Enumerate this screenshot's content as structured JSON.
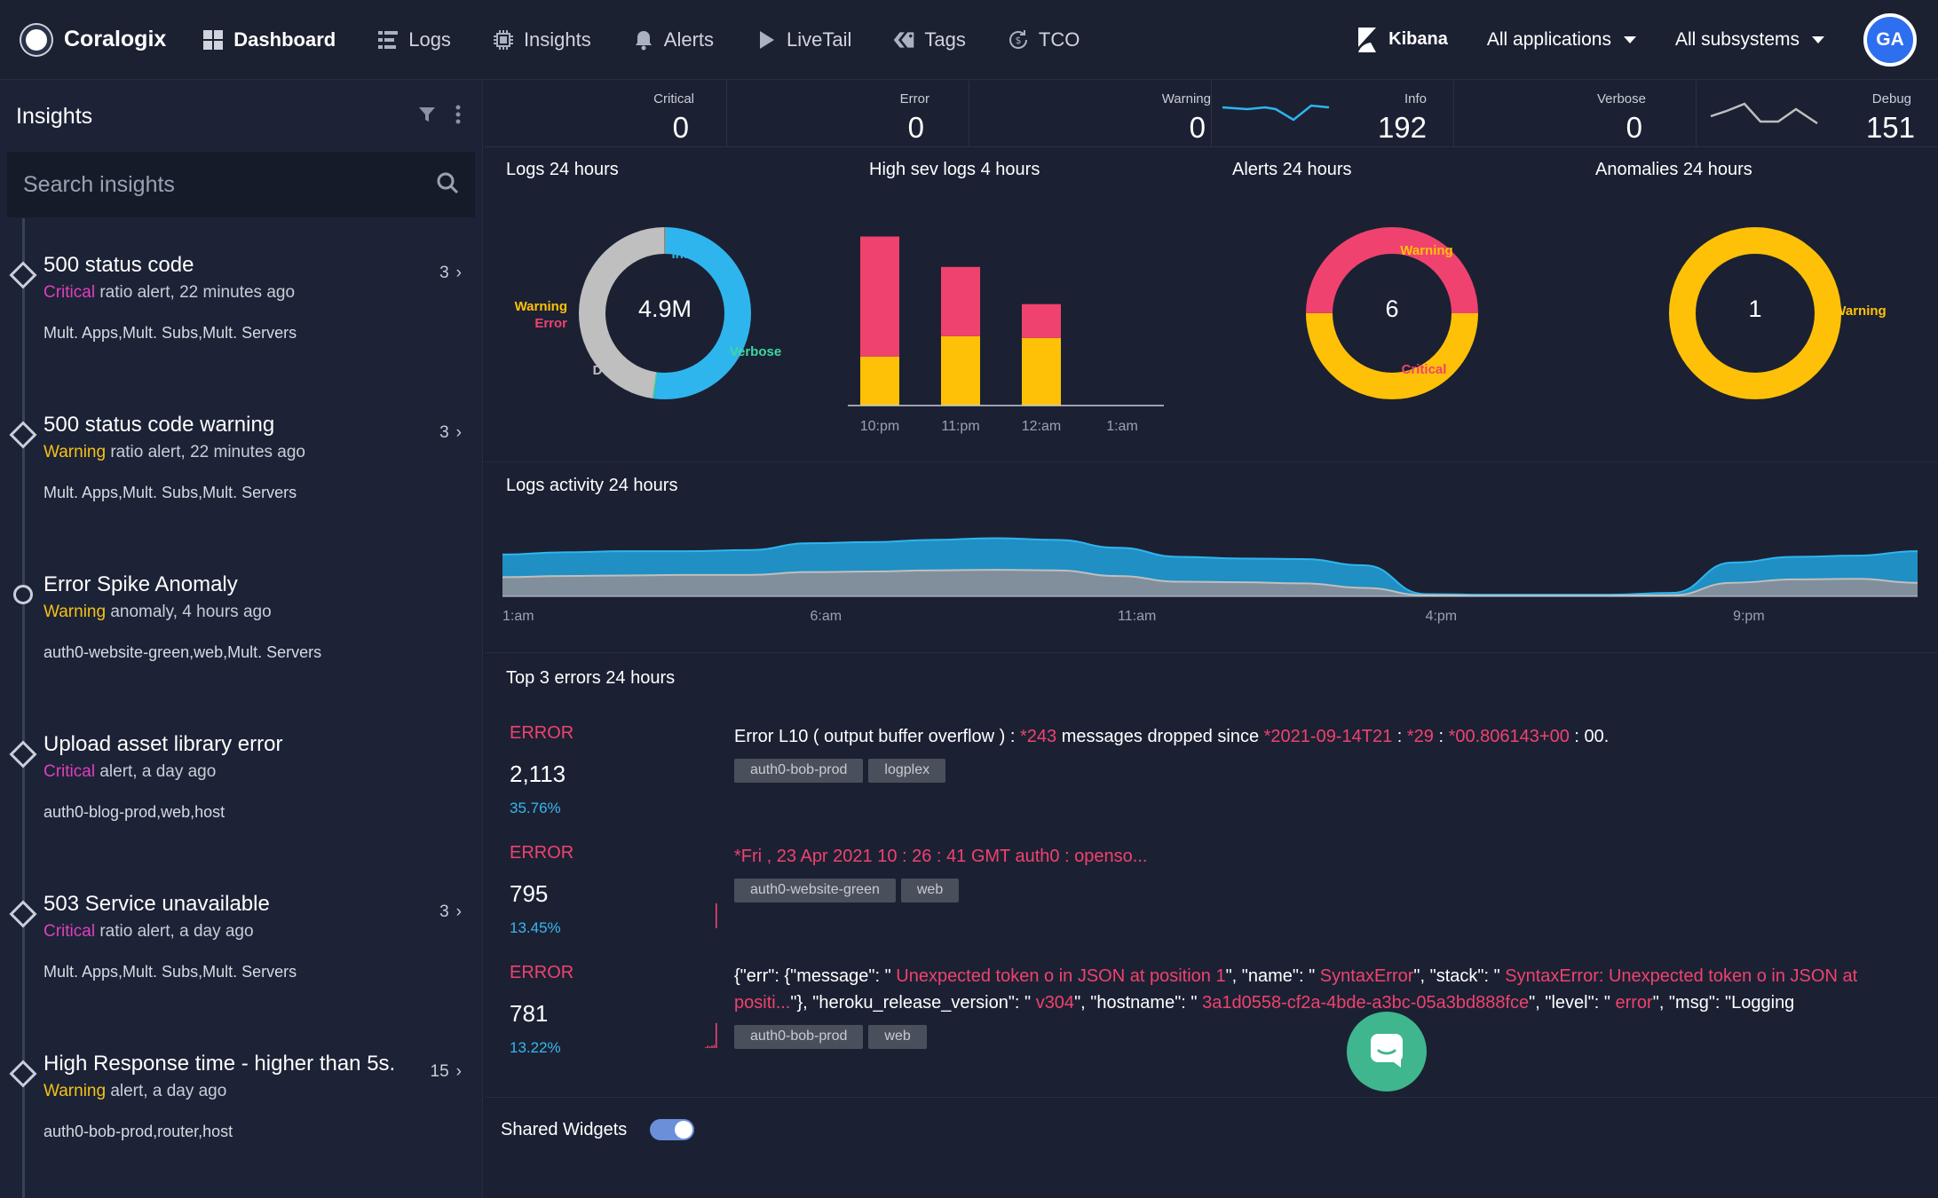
{
  "nav": {
    "brand": "Coralogix",
    "items": [
      {
        "label": "Dashboard",
        "icon": "grid-icon",
        "active": true
      },
      {
        "label": "Logs",
        "icon": "logs-icon",
        "active": false
      },
      {
        "label": "Insights",
        "icon": "chip-icon",
        "active": false
      },
      {
        "label": "Alerts",
        "icon": "bell-icon",
        "active": false
      },
      {
        "label": "LiveTail",
        "icon": "play-icon",
        "active": false
      },
      {
        "label": "Tags",
        "icon": "tags-icon",
        "active": false
      },
      {
        "label": "TCO",
        "icon": "tco-icon",
        "active": false
      }
    ],
    "kibana": "Kibana",
    "applications": "All applications",
    "subsystems": "All subsystems",
    "avatar_initials": "GA"
  },
  "sidebar": {
    "title": "Insights",
    "search_placeholder": "Search insights",
    "insights": [
      {
        "title": "500 status code",
        "severity": "Critical",
        "detail": " ratio alert, 22 minutes ago",
        "meta": "Mult. Apps,Mult. Subs,Mult. Servers",
        "count": "3",
        "marker": "diamond"
      },
      {
        "title": "500 status code warning",
        "severity": "Warning",
        "detail": " ratio alert, 22 minutes ago",
        "meta": "Mult. Apps,Mult. Subs,Mult. Servers",
        "count": "3",
        "marker": "diamond"
      },
      {
        "title": "Error Spike Anomaly",
        "severity": "Warning",
        "detail": " anomaly, 4 hours ago",
        "meta": "auth0-website-green,web,Mult. Servers",
        "count": "",
        "marker": "circle"
      },
      {
        "title": "Upload asset library error",
        "severity": "Critical",
        "detail": " alert, a day ago",
        "meta": "auth0-blog-prod,web,host",
        "count": "",
        "marker": "diamond"
      },
      {
        "title": "503 Service unavailable",
        "severity": "Critical",
        "detail": " ratio alert, a day ago",
        "meta": "Mult. Apps,Mult. Subs,Mult. Servers",
        "count": "3",
        "marker": "diamond"
      },
      {
        "title": "High Response time - higher than 5s.",
        "severity": "Warning",
        "detail": " alert, a day ago",
        "meta": "auth0-bob-prod,router,host",
        "count": "15",
        "marker": "diamond"
      }
    ]
  },
  "stats": [
    {
      "label": "Critical",
      "value": "0"
    },
    {
      "label": "Error",
      "value": "0"
    },
    {
      "label": "Warning",
      "value": "0"
    },
    {
      "label": "Info",
      "value": "192"
    },
    {
      "label": "Verbose",
      "value": "0"
    },
    {
      "label": "Debug",
      "value": "151"
    }
  ],
  "widgets": {
    "logs24": {
      "title": "Logs 24 hours",
      "center": "4.9M",
      "labels": {
        "info": "Info",
        "verbose": "Verbose",
        "debug": "Debug",
        "warning": "Warning",
        "error": "Error"
      }
    },
    "highsev": {
      "title": "High sev logs 4 hours"
    },
    "alerts24": {
      "title": "Alerts 24 hours",
      "center": "6",
      "labels": {
        "warning": "Warning",
        "critical": "Critical"
      }
    },
    "anomalies24": {
      "title": "Anomalies 24 hours",
      "center": "1",
      "labels": {
        "warning": "Warning"
      }
    },
    "activity": {
      "title": "Logs activity 24 hours"
    },
    "top_errors": {
      "title": "Top 3 errors 24 hours",
      "items": [
        {
          "label": "ERROR",
          "count": "2,113",
          "pct": "35.76%",
          "tags": [
            "auth0-bob-prod",
            "logplex"
          ],
          "msg_parts": [
            {
              "t": "Error L10 ( output buffer overflow ) : ",
              "hl": false
            },
            {
              "t": "*243",
              "hl": true
            },
            {
              "t": " messages dropped since ",
              "hl": false
            },
            {
              "t": "*2021-09-14T21",
              "hl": true
            },
            {
              "t": " : ",
              "hl": false
            },
            {
              "t": "*29",
              "hl": true
            },
            {
              "t": " : ",
              "hl": false
            },
            {
              "t": "*00.806143+00",
              "hl": true
            },
            {
              "t": " : 00.",
              "hl": false
            }
          ]
        },
        {
          "label": "ERROR",
          "count": "795",
          "pct": "13.45%",
          "tags": [
            "auth0-website-green",
            "web"
          ],
          "msg_parts": [
            {
              "t": "*Fri , 23 Apr 2021 10 : 26 : 41 GMT auth0 : openso...",
              "hl": true
            }
          ]
        },
        {
          "label": "ERROR",
          "count": "781",
          "pct": "13.22%",
          "tags": [
            "auth0-bob-prod",
            "web"
          ],
          "msg_parts": [
            {
              "t": "{\"err\": {\"message\": \" ",
              "hl": false
            },
            {
              "t": "Unexpected token o in JSON at position 1",
              "hl": true
            },
            {
              "t": "\", \"name\": \" ",
              "hl": false
            },
            {
              "t": "SyntaxError",
              "hl": true
            },
            {
              "t": "\", \"stack\": \" ",
              "hl": false
            },
            {
              "t": "SyntaxError: Unexpected token o in JSON at positi...",
              "hl": true
            },
            {
              "t": "\"}, \"heroku_release_version\": \" ",
              "hl": false
            },
            {
              "t": "v304",
              "hl": true
            },
            {
              "t": "\", \"hostname\": \" ",
              "hl": false
            },
            {
              "t": "3a1d0558-cf2a-4bde-a3bc-05a3bd888fce",
              "hl": true
            },
            {
              "t": "\", \"level\": \" ",
              "hl": false
            },
            {
              "t": "error",
              "hl": true
            },
            {
              "t": "\", \"msg\": \"Logging",
              "hl": false
            }
          ]
        }
      ]
    },
    "shared": {
      "label": "Shared Widgets",
      "enabled": true
    }
  },
  "colors": {
    "info": "#2fb5ee",
    "debug": "#bfbfbf",
    "error": "#f0426e",
    "warning": "#ffc107",
    "critical": "#f0426e",
    "verbose": "#3ed7a0"
  },
  "chart_data": [
    {
      "type": "pie",
      "title": "Logs 24 hours",
      "categories": [
        "Info",
        "Verbose",
        "Debug",
        "Warning",
        "Error"
      ],
      "values": [
        52,
        0.3,
        47.5,
        0.1,
        0.1
      ],
      "center_label": "4.9M"
    },
    {
      "type": "bar",
      "title": "High sev logs 4 hours",
      "categories": [
        "10:pm",
        "11:pm",
        "12:am",
        "1:am"
      ],
      "series": [
        {
          "name": "Warning",
          "values": [
            29,
            41,
            40,
            0
          ]
        },
        {
          "name": "Error",
          "values": [
            71,
            41,
            20,
            0
          ]
        }
      ],
      "ylim": [
        0,
        105
      ]
    },
    {
      "type": "pie",
      "title": "Alerts 24 hours",
      "categories": [
        "Warning",
        "Critical"
      ],
      "values": [
        3,
        3
      ],
      "center_label": "6"
    },
    {
      "type": "pie",
      "title": "Anomalies 24 hours",
      "categories": [
        "Warning"
      ],
      "values": [
        1
      ],
      "center_label": "1"
    },
    {
      "type": "area",
      "title": "Logs activity 24 hours",
      "x": [
        "1:am",
        "2:am",
        "3:am",
        "4:am",
        "5:am",
        "6:am",
        "7:am",
        "8:am",
        "9:am",
        "10:am",
        "11:am",
        "12:pm",
        "1:pm",
        "2:pm",
        "3:pm",
        "4:pm",
        "5:pm",
        "6:pm",
        "7:pm",
        "8:pm",
        "9:pm",
        "10:pm",
        "11:pm",
        "12:am"
      ],
      "x_ticks": [
        "1:am",
        "6:am",
        "11:am",
        "4:pm",
        "9:pm"
      ],
      "series": [
        {
          "name": "Info",
          "values": [
            74,
            78,
            80,
            80,
            82,
            94,
            96,
            100,
            103,
            100,
            86,
            70,
            67,
            66,
            55,
            4,
            3,
            3,
            3,
            6,
            60,
            70,
            72,
            80
          ]
        },
        {
          "name": "Debug",
          "values": [
            34,
            36,
            37,
            38,
            38,
            43,
            44,
            46,
            47,
            46,
            36,
            26,
            25,
            23,
            15,
            2,
            1,
            1,
            1,
            2,
            24,
            30,
            31,
            24
          ]
        }
      ],
      "ylim": [
        0,
        110
      ]
    },
    {
      "type": "bar",
      "title": "Error trend sparklines",
      "series": [
        {
          "name": "ERROR 2,113",
          "values": [
            0,
            0,
            0,
            0,
            0,
            0
          ]
        },
        {
          "name": "ERROR 795",
          "values": [
            0,
            0,
            0,
            0,
            0,
            33
          ]
        },
        {
          "name": "ERROR 781",
          "values": [
            1,
            3,
            2,
            3,
            4,
            33
          ]
        }
      ]
    }
  ]
}
